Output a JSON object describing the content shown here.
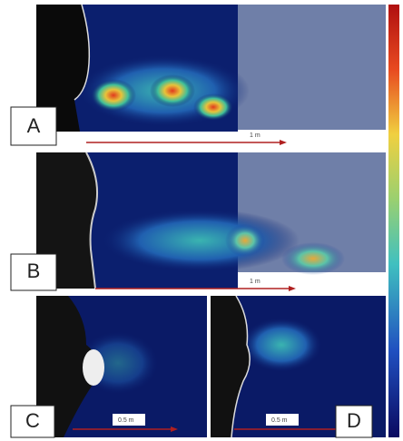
{
  "panels": [
    {
      "label": "A",
      "scale": "1 m"
    },
    {
      "label": "B",
      "scale": "1 m"
    },
    {
      "label": "C",
      "scale": "0.5 m"
    },
    {
      "label": "D",
      "scale": "0.5 m"
    }
  ]
}
